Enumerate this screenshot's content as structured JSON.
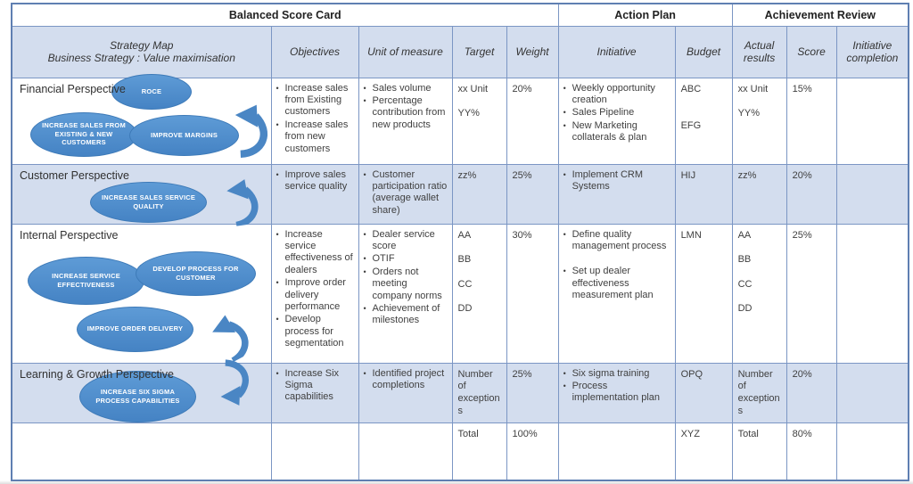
{
  "colors": {
    "accent_blue": "#4a86c4",
    "band_blue": "#d3ddee",
    "border_blue": "#7b96c4",
    "oval_fill": "#4e8bc9",
    "oval_border": "#3d7ab8",
    "text_dark": "#3f3f3f"
  },
  "header": {
    "group1": "Balanced Score Card",
    "group2": "Action Plan",
    "group3": "Achievement Review",
    "columns": {
      "strategy_map_line1": "Strategy Map",
      "strategy_map_line2": "Business Strategy : Value maximisation",
      "objectives": "Objectives",
      "unit": "Unit of measure",
      "target": "Target",
      "weight": "Weight",
      "initiative": "Initiative",
      "budget": "Budget",
      "actual": "Actual results",
      "score": "Score",
      "completion": "Initiative completion"
    }
  },
  "rows": [
    {
      "perspective": "Financial Perspective",
      "ovals": [
        "ROCE",
        "INCREASE SALES FROM EXISTING & NEW  CUSTOMERS",
        "IMPROVE MARGINS"
      ],
      "objectives": [
        "Increase sales from Existing customers",
        "Increase sales from new customers"
      ],
      "unit": [
        "Sales volume",
        "Percentage contribution from new products"
      ],
      "target": "xx Unit\n\nYY%",
      "weight": "20%",
      "initiative": [
        "Weekly opportunity creation",
        "Sales Pipeline",
        "New Marketing collaterals & plan"
      ],
      "budget": "ABC\n\n\nEFG",
      "actual": "xx Unit\n\nYY%",
      "score": "15%",
      "completion": ""
    },
    {
      "perspective": "Customer Perspective",
      "ovals": [
        "INCREASE SALES SERVICE QUALITY"
      ],
      "objectives": [
        "Improve sales service quality"
      ],
      "unit": [
        "Customer participation ratio (average wallet share)"
      ],
      "target": "zz%",
      "weight": "25%",
      "initiative": [
        "Implement CRM Systems"
      ],
      "budget": "HIJ",
      "actual": "zz%",
      "score": "20%",
      "completion": ""
    },
    {
      "perspective": "Internal Perspective",
      "ovals": [
        "INCREASE SERVICE EFFECTIVENESS",
        "DEVELOP PROCESS FOR CUSTOMER",
        "IMPROVE ORDER DELIVERY"
      ],
      "objectives": [
        "Increase service effectiveness of dealers",
        "Improve order delivery performance",
        "Develop process for segmentation"
      ],
      "unit": [
        "Dealer service score",
        "OTIF",
        "Orders not meeting company norms",
        "Achievement of milestones"
      ],
      "target": "AA\n\nBB\n\nCC\n\nDD",
      "weight": "30%",
      "initiative": [
        "Define quality management process",
        "",
        "Set up dealer effectiveness measurement plan"
      ],
      "budget": "LMN",
      "actual": "AA\n\nBB\n\nCC\n\nDD",
      "score": "25%",
      "completion": ""
    },
    {
      "perspective": "Learning & Growth Perspective",
      "ovals": [
        "INCREASE SIX SIGMA PROCESS CAPABILITIES"
      ],
      "objectives": [
        "Increase Six Sigma capabilities"
      ],
      "unit": [
        "Identified project completions"
      ],
      "target": "Number of exceptions",
      "weight": "25%",
      "initiative": [
        "Six sigma training",
        "Process implementation plan"
      ],
      "budget": "OPQ",
      "actual": "Number of exceptions",
      "score": "20%",
      "completion": ""
    }
  ],
  "total_row": {
    "strategy": "",
    "objectives": "",
    "unit": "",
    "target": "Total",
    "weight": "100%",
    "initiative": "",
    "budget": "XYZ",
    "actual": "Total",
    "score": "80%",
    "completion": ""
  }
}
